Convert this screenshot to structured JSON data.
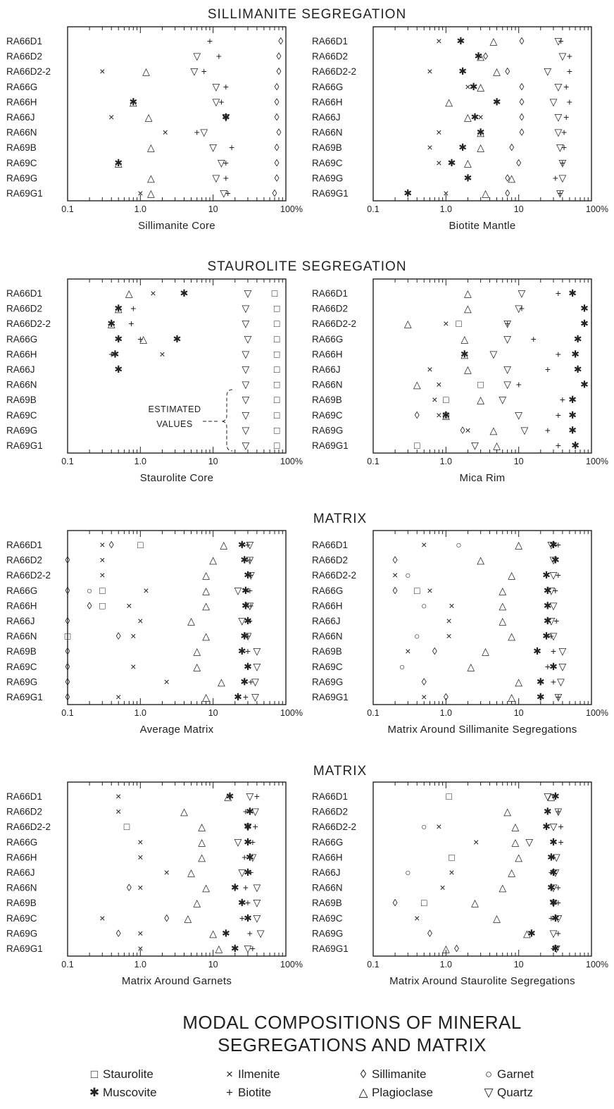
{
  "section_titles": [
    "SILLIMANITE SEGREGATION",
    "STAUROLITE SEGREGATION",
    "MATRIX",
    "MATRIX"
  ],
  "figure_title": [
    "MODAL COMPOSITIONS OF MINERAL",
    "SEGREGATIONS AND MATRIX"
  ],
  "annotation": [
    "ESTIMATED",
    "VALUES"
  ],
  "samples": [
    "RA66D1",
    "RA66D2",
    "RA66D2-2",
    "RA66G",
    "RA66H",
    "RA66J",
    "RA66N",
    "RA69B",
    "RA69C",
    "RA69G",
    "RA69G1"
  ],
  "axis": {
    "scale": "log",
    "range": [
      0.1,
      100
    ],
    "tick_labels": [
      "0.1",
      "1.0",
      "10",
      "100%"
    ]
  },
  "legend": [
    {
      "key": "S",
      "symbol": "□",
      "label": "Staurolite"
    },
    {
      "key": "I",
      "symbol": "×",
      "label": "Ilmenite"
    },
    {
      "key": "L",
      "symbol": "◊",
      "label": "Sillimanite"
    },
    {
      "key": "G",
      "symbol": "○",
      "label": "Garnet"
    },
    {
      "key": "M",
      "symbol": "✱",
      "label": "Muscovite"
    },
    {
      "key": "B",
      "symbol": "+",
      "label": "Biotite"
    },
    {
      "key": "P",
      "symbol": "△",
      "label": "Plagioclase"
    },
    {
      "key": "Q",
      "symbol": "▽",
      "label": "Quartz"
    }
  ],
  "chart_data": [
    {
      "type": "scatter",
      "xlabel": "Sillimanite Core",
      "xscale": "log",
      "xlim": [
        0.1,
        100
      ],
      "rows": [
        {
          "I": null,
          "B": 9,
          "L": 85
        },
        {
          "Q": 6,
          "B": 12,
          "L": 80
        },
        {
          "I": 0.3,
          "P": 1.2,
          "Q": 5.5,
          "B": 7.5,
          "L": 80
        },
        {
          "Q": 11,
          "B": 15,
          "L": 75
        },
        {
          "P": 0.8,
          "M": 0.8,
          "Q": 11,
          "B": 13,
          "L": 75
        },
        {
          "I": 0.4,
          "P": 1.3,
          "Q": 15,
          "B": 15,
          "M": 15,
          "L": 75
        },
        {
          "I": 2.2,
          "B": 6,
          "Q": 7.5,
          "L": 80
        },
        {
          "P": 1.4,
          "Q": 10,
          "B": 18,
          "L": 75
        },
        {
          "P": 0.5,
          "M": 0.5,
          "Q": 13,
          "B": 15,
          "L": 75
        },
        {
          "P": 1.4,
          "Q": 11,
          "B": 15,
          "L": 75
        },
        {
          "I": 1.0,
          "P": 1.4,
          "Q": 14,
          "B": 16,
          "L": 70
        }
      ]
    },
    {
      "type": "scatter",
      "xlabel": "Biotite Mantle",
      "xscale": "log",
      "xlim": [
        0.1,
        100
      ],
      "rows": [
        {
          "I": 0.8,
          "M": 1.6,
          "P": 4.5,
          "L": 11,
          "Q": 35,
          "B": 38
        },
        {
          "M": 2.8,
          "P": 3,
          "L": 3.5,
          "Q": 40,
          "B": 50
        },
        {
          "I": 0.6,
          "M": 1.7,
          "P": 5,
          "L": 7,
          "Q": 25,
          "B": 50
        },
        {
          "I": 2,
          "M": 2.4,
          "P": 3,
          "L": 11,
          "Q": 35,
          "B": 45
        },
        {
          "P": 1.1,
          "M": 5,
          "L": 11,
          "Q": 30,
          "B": 50
        },
        {
          "P": 2,
          "M": 2.5,
          "I": 3,
          "L": 11,
          "Q": 35,
          "B": 45
        },
        {
          "I": 0.8,
          "M": 3,
          "P": 3,
          "L": 11,
          "Q": 35,
          "B": 42
        },
        {
          "I": 0.6,
          "M": 1.7,
          "P": 3,
          "L": 8,
          "Q": 37,
          "B": 42
        },
        {
          "I": 0.8,
          "M": 1.2,
          "P": 2,
          "L": 10,
          "Q": 40,
          "B": 40
        },
        {
          "M": 2,
          "L": 7,
          "P": 8,
          "B": 32,
          "Q": 40
        },
        {
          "M": 0.3,
          "I": 1,
          "P": 3.5,
          "L": 7,
          "Q": 37,
          "B": 37
        }
      ]
    },
    {
      "type": "scatter",
      "xlabel": "Staurolite Core",
      "xscale": "log",
      "xlim": [
        0.1,
        100
      ],
      "rows": [
        {
          "P": 0.7,
          "I": 1.5,
          "M": 4,
          "Q": 30,
          "S": 70
        },
        {
          "P": 0.5,
          "M": 0.5,
          "B": 0.8,
          "Q": 28,
          "S": 75
        },
        {
          "P": 0.4,
          "M": 0.4,
          "B": 0.75,
          "Q": 28,
          "S": 75
        },
        {
          "M": 0.5,
          "B": 1,
          "P": 1.1,
          "M2": 3.2,
          "Q": 30,
          "S": 75
        },
        {
          "B": 0.4,
          "M": 0.45,
          "I": 2,
          "Q": 28,
          "S": 75
        },
        {
          "M": 0.5,
          "Q": 28,
          "S": 75
        },
        {
          "Q": 28,
          "S": 75
        },
        {
          "Q": 28,
          "S": 75
        },
        {
          "Q": 28,
          "S": 75
        },
        {
          "Q": 28,
          "S": 75
        },
        {
          "Q": 28,
          "S": 75
        }
      ]
    },
    {
      "type": "scatter",
      "xlabel": "Mica Rim",
      "xscale": "log",
      "xlim": [
        0.1,
        100
      ],
      "rows": [
        {
          "P": 2,
          "Q": 11,
          "B": 35,
          "M": 55
        },
        {
          "P": 2,
          "Q": 10,
          "B": 11,
          "M": 80
        },
        {
          "P": 0.3,
          "I": 1,
          "S": 1.5,
          "Q": 7,
          "B": 7,
          "M": 80
        },
        {
          "P": 1.8,
          "Q": 7,
          "B": 16,
          "M": 65
        },
        {
          "P": 1.8,
          "M": 1.8,
          "Q": 4.5,
          "B": 35,
          "M2": 60
        },
        {
          "I": 0.6,
          "P": 2,
          "Q": 7,
          "B": 25,
          "M": 65
        },
        {
          "P": 0.4,
          "I": 0.8,
          "S": 3,
          "Q": 7,
          "B": 10,
          "M": 80
        },
        {
          "I": 0.7,
          "S": 1,
          "P": 3,
          "Q": 6,
          "B": 40,
          "M": 55
        },
        {
          "L": 0.4,
          "I": 0.8,
          "M": 1,
          "S": 1,
          "P": 1,
          "Q": 10,
          "B": 35,
          "M2": 55
        },
        {
          "L": 1.7,
          "I": 2,
          "P": 4.5,
          "Q": 12,
          "B": 25,
          "M": 55
        },
        {
          "S": 0.4,
          "Q": 2.5,
          "P": 5,
          "B": 35,
          "M": 60
        }
      ]
    },
    {
      "type": "scatter",
      "xlabel": "Average Matrix",
      "xscale": "log",
      "xlim": [
        0.1,
        100
      ],
      "rows": [
        {
          "I": 0.3,
          "L": 0.4,
          "S": 1,
          "P": 14,
          "M": 25,
          "B": 30,
          "Q": 32
        },
        {
          "L": 0.1,
          "I": 0.3,
          "P": 10,
          "M": 27,
          "Q": 32,
          "B": 32
        },
        {
          "I": 0.3,
          "P": 8,
          "M": 30,
          "Q": 33,
          "B": 33
        },
        {
          "L": 0.1,
          "G": 0.2,
          "S": 0.3,
          "I": 1.2,
          "P": 8,
          "Q": 22,
          "M": 28,
          "B": 32
        },
        {
          "L": 0.2,
          "S": 0.3,
          "I": 0.7,
          "P": 8,
          "M": 28,
          "Q": 32,
          "B": 33
        },
        {
          "L": 0.1,
          "I": 1,
          "P": 5,
          "Q": 25,
          "M": 30,
          "B": 32
        },
        {
          "S": 0.1,
          "L": 0.5,
          "I": 0.8,
          "P": 8,
          "M": 27,
          "B": 30,
          "Q": 30
        },
        {
          "L": 0.1,
          "P": 6,
          "M": 25,
          "B": 30,
          "Q": 40
        },
        {
          "L": 0.1,
          "I": 0.8,
          "P": 6,
          "M": 30,
          "B": 30,
          "Q": 40
        },
        {
          "L": 0.1,
          "I": 2.3,
          "P": 13,
          "M": 27,
          "B": 33,
          "Q": 38
        },
        {
          "L": 0.1,
          "I": 0.5,
          "P": 8,
          "M": 22,
          "B": 28,
          "Q": 38
        }
      ]
    },
    {
      "type": "scatter",
      "xlabel": "Matrix Around Sillimanite Segregations",
      "xscale": "log",
      "xlim": [
        0.1,
        100
      ],
      "rows": [
        {
          "I": 0.5,
          "G": 1.5,
          "P": 10,
          "Q": 28,
          "M": 30,
          "B": 35
        },
        {
          "L": 0.2,
          "P": 3,
          "Q": 30,
          "M": 32
        },
        {
          "I": 0.2,
          "G": 0.3,
          "P": 8,
          "M": 24,
          "Q": 30,
          "B": 35
        },
        {
          "L": 0.2,
          "S": 0.4,
          "I": 0.6,
          "P": 6,
          "M": 25,
          "Q": 28,
          "B": 32
        },
        {
          "G": 0.5,
          "I": 1.2,
          "P": 6,
          "M": 25,
          "Q": 30
        },
        {
          "I": 1.1,
          "P": 6,
          "M": 25,
          "Q": 28,
          "B": 33
        },
        {
          "G": 0.4,
          "I": 1.1,
          "P": 8,
          "M": 24,
          "B": 28,
          "Q": 30
        },
        {
          "I": 0.3,
          "L": 0.7,
          "P": 3.5,
          "M": 18,
          "B": 30,
          "Q": 40
        },
        {
          "G": 0.25,
          "P": 2.2,
          "B": 25,
          "M": 30,
          "Q": 40
        },
        {
          "L": 0.5,
          "P": 10,
          "M": 20,
          "B": 30,
          "Q": 38
        },
        {
          "I": 0.5,
          "L": 1,
          "P": 8,
          "M": 20,
          "Q": 35,
          "B": 35
        }
      ]
    },
    {
      "type": "scatter",
      "xlabel": "Matrix Around Garnets",
      "xscale": "log",
      "xlim": [
        0.1,
        100
      ],
      "rows": [
        {
          "I": 0.5,
          "P": 16,
          "M": 17,
          "Q": 32,
          "B": 40
        },
        {
          "I": 0.5,
          "P": 4,
          "B": 28,
          "M": 32,
          "Q": 38
        },
        {
          "S": 0.65,
          "P": 7,
          "Q": 30,
          "M": 30,
          "B": 38
        },
        {
          "I": 1,
          "P": 7,
          "Q": 22,
          "M": 30,
          "B": 35
        },
        {
          "I": 1,
          "P": 7,
          "B": 27,
          "M": 32,
          "Q": 35
        },
        {
          "I": 2.3,
          "P": 5,
          "Q": 25,
          "M": 30,
          "B": 33
        },
        {
          "L": 0.7,
          "I": 1,
          "P": 8,
          "M": 20,
          "B": 28,
          "Q": 40
        },
        {
          "P": 6,
          "M": 25,
          "B": 30,
          "Q": 40
        },
        {
          "I": 0.3,
          "L": 2.3,
          "P": 4.5,
          "B": 25,
          "M": 30,
          "Q": 40
        },
        {
          "L": 0.5,
          "I": 1,
          "P": 10,
          "M": 15,
          "B": 32,
          "Q": 45
        },
        {
          "I": 1,
          "P": 12,
          "M": 20,
          "Q": 30,
          "B": 35
        }
      ]
    },
    {
      "type": "scatter",
      "xlabel": "Matrix Around Staurolite Segregations",
      "xscale": "log",
      "xlim": [
        0.1,
        100
      ],
      "rows": [
        {
          "S": 1.1,
          "Q": 25,
          "P": 28,
          "M": 32
        },
        {
          "P": 7,
          "M": 25,
          "Q": 35,
          "B": 35
        },
        {
          "G": 0.5,
          "I": 0.8,
          "P": 9,
          "M": 24,
          "Q": 30,
          "B": 38
        },
        {
          "I": 2.6,
          "P": 9,
          "Q": 14,
          "M": 30,
          "B": 38
        },
        {
          "S": 1.2,
          "P": 10,
          "M": 28,
          "B": 30,
          "Q": 33
        },
        {
          "G": 0.3,
          "I": 1.2,
          "P": 8,
          "B": 28,
          "M": 30,
          "Q": 32
        },
        {
          "I": 0.9,
          "P": 6,
          "M": 28,
          "Q": 30,
          "B": 35
        },
        {
          "L": 0.2,
          "S": 0.5,
          "P": 2.5,
          "Q": 30,
          "M": 30,
          "B": 35
        },
        {
          "I": 0.4,
          "P": 5,
          "B": 28,
          "M": 32,
          "Q": 35
        },
        {
          "L": 0.6,
          "P": 13,
          "M": 15,
          "Q": 30,
          "B": 35
        },
        {
          "P": 1,
          "L": 1.4,
          "B": 30,
          "M": 32,
          "Q": 33
        }
      ]
    }
  ]
}
